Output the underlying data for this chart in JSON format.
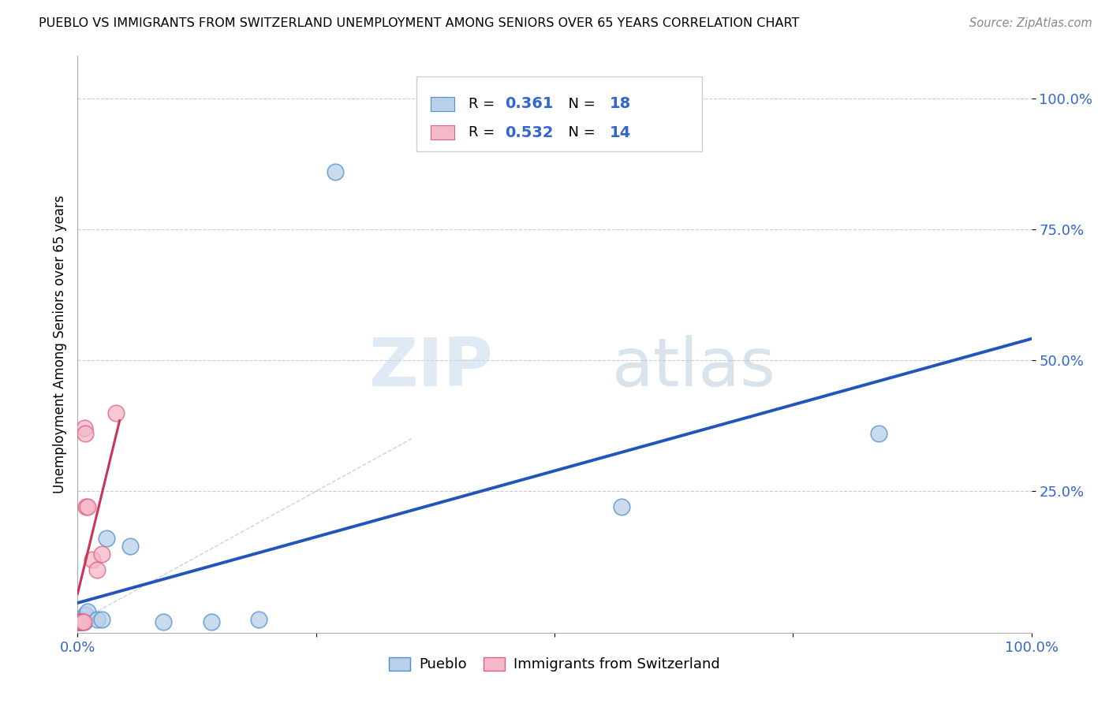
{
  "title": "PUEBLO VS IMMIGRANTS FROM SWITZERLAND UNEMPLOYMENT AMONG SENIORS OVER 65 YEARS CORRELATION CHART",
  "source": "Source: ZipAtlas.com",
  "ylabel": "Unemployment Among Seniors over 65 years",
  "pueblo_points": [
    [
      0.001,
      0.001
    ],
    [
      0.002,
      0.001
    ],
    [
      0.003,
      0.001
    ],
    [
      0.004,
      0.001
    ],
    [
      0.005,
      0.005
    ],
    [
      0.007,
      0.001
    ],
    [
      0.008,
      0.015
    ],
    [
      0.01,
      0.02
    ],
    [
      0.02,
      0.005
    ],
    [
      0.025,
      0.005
    ],
    [
      0.03,
      0.16
    ],
    [
      0.055,
      0.145
    ],
    [
      0.09,
      0.001
    ],
    [
      0.14,
      0.001
    ],
    [
      0.19,
      0.005
    ],
    [
      0.27,
      0.86
    ],
    [
      0.57,
      0.22
    ],
    [
      0.84,
      0.36
    ]
  ],
  "swiss_points": [
    [
      0.001,
      0.001
    ],
    [
      0.002,
      0.001
    ],
    [
      0.003,
      0.001
    ],
    [
      0.004,
      0.001
    ],
    [
      0.005,
      0.001
    ],
    [
      0.006,
      0.001
    ],
    [
      0.007,
      0.37
    ],
    [
      0.008,
      0.36
    ],
    [
      0.009,
      0.22
    ],
    [
      0.01,
      0.22
    ],
    [
      0.015,
      0.12
    ],
    [
      0.02,
      0.1
    ],
    [
      0.025,
      0.13
    ],
    [
      0.04,
      0.4
    ]
  ],
  "pueblo_R": 0.361,
  "pueblo_N": 18,
  "swiss_R": 0.532,
  "swiss_N": 14,
  "pueblo_color": "#b8d0e8",
  "swiss_color": "#f5b8c8",
  "pueblo_edge_color": "#5090d0",
  "swiss_edge_color": "#e06080",
  "pueblo_line_color": "#2255bb",
  "swiss_line_color": "#cc3355",
  "diag_line_color": "#cccccc",
  "tick_color": "#3366cc",
  "legend_pueblo_label": "Pueblo",
  "legend_swiss_label": "Immigrants from Switzerland",
  "watermark_zip": "ZIP",
  "watermark_atlas": "atlas",
  "xlim": [
    0.0,
    1.0
  ],
  "ylim": [
    -0.02,
    1.08
  ],
  "xticks": [
    0.0,
    0.25,
    0.5,
    0.75,
    1.0
  ],
  "xtick_labels": [
    "0.0%",
    "",
    "",
    "",
    "100.0%"
  ],
  "ytick_vals": [
    0.25,
    0.5,
    0.75,
    1.0
  ],
  "ytick_labels": [
    "25.0%",
    "50.0%",
    "75.0%",
    "100.0%"
  ],
  "background_color": "#ffffff",
  "grid_color": "#cccccc"
}
